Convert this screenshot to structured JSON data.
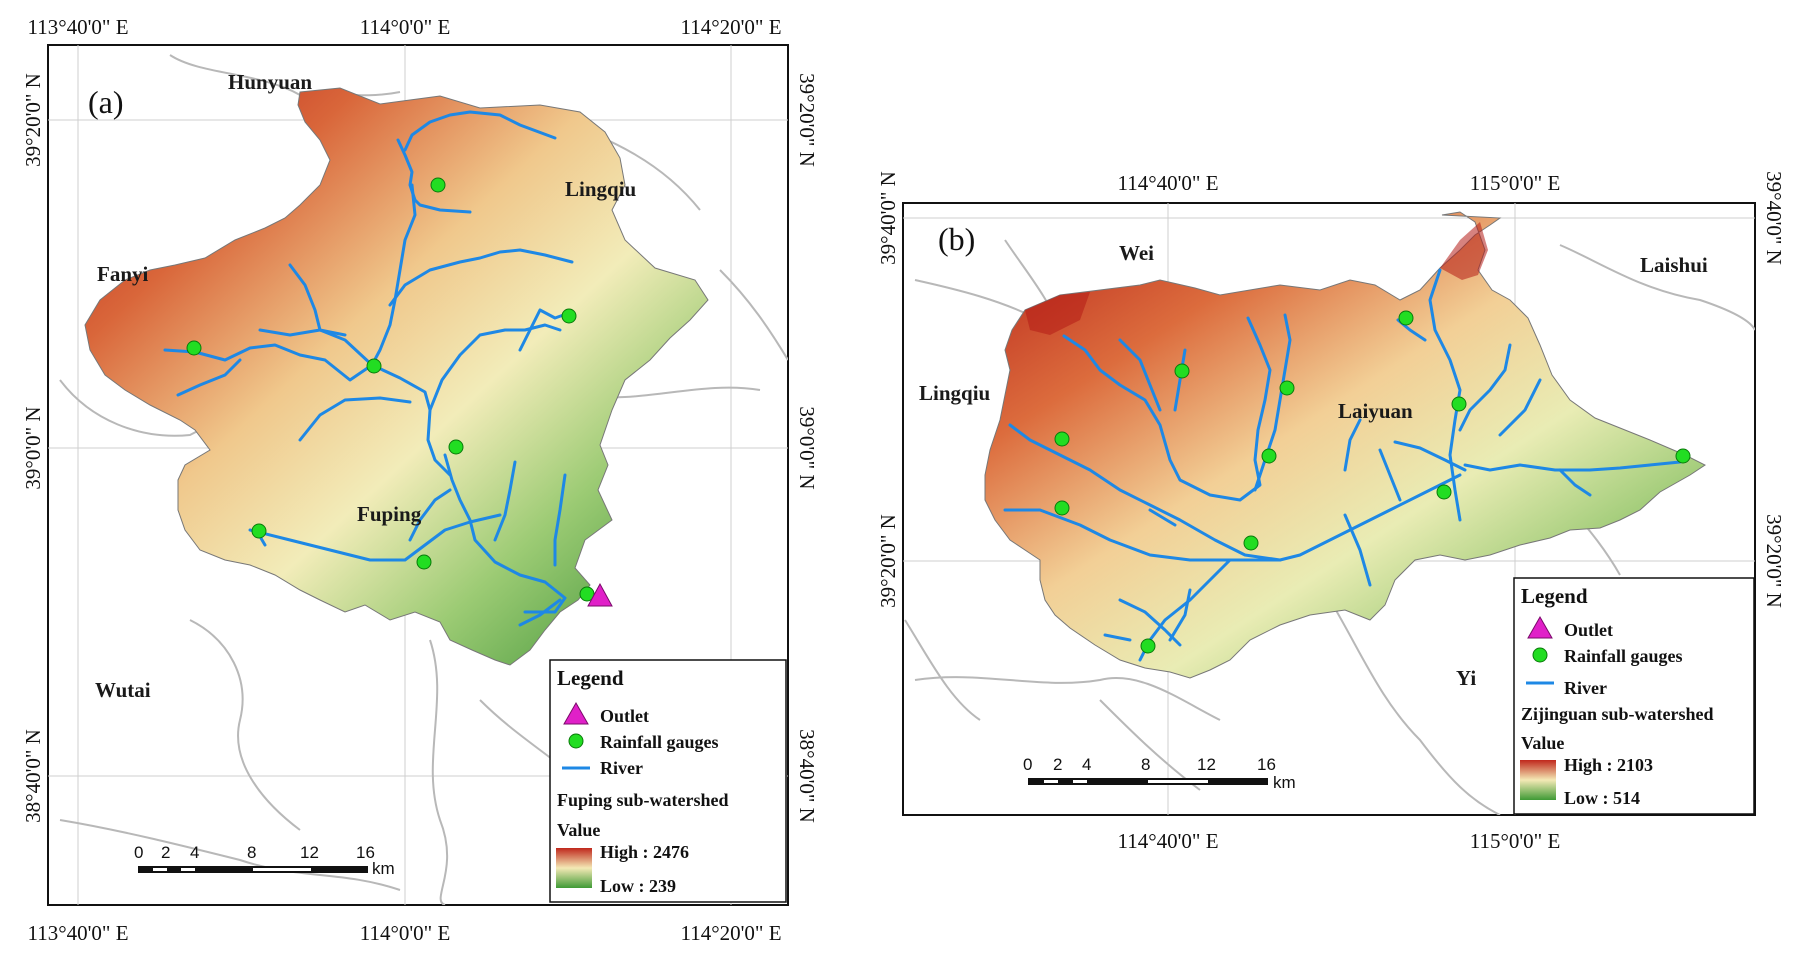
{
  "colors": {
    "high": "#c0271c",
    "mid": "#f4e9b5",
    "low": "#3f9a35",
    "river": "#1e88e5",
    "gauge": "#22dd22",
    "outlet": "#e020c8",
    "boundary": "#b8b8b8"
  },
  "panel_a": {
    "label": "(a)",
    "x_ticks": [
      "113°40'0\" E",
      "114°0'0\" E",
      "114°20'0\" E"
    ],
    "y_ticks_left": [
      "39°20'0\" N",
      "39°0'0\" N",
      "38°40'0\" N"
    ],
    "y_ticks_right": [
      "39°20'0\" N",
      "39°0'0\" N",
      "38°40'0\" N"
    ],
    "places": [
      "Hunyuan",
      "Lingqiu",
      "Fanyi",
      "Fuping",
      "Wutai"
    ],
    "legend": {
      "title": "Legend",
      "outlet": "Outlet",
      "gauges": "Rainfall gauges",
      "river": "River",
      "watershed": "Fuping sub-watershed",
      "value": "Value",
      "high": "High : 2476",
      "low": "Low : 239"
    },
    "scale": {
      "ticks": [
        "0",
        "2",
        "4",
        "8",
        "12",
        "16"
      ],
      "unit": "km"
    }
  },
  "panel_b": {
    "label": "(b)",
    "x_ticks": [
      "114°40'0\" E",
      "115°0'0\" E"
    ],
    "y_ticks_left": [
      "39°40'0\" N",
      "39°20'0\" N"
    ],
    "y_ticks_right": [
      "39°40'0\" N",
      "39°20'0\" N"
    ],
    "places": [
      "Wei",
      "Laishui",
      "Lingqiu",
      "Laiyuan",
      "Yi"
    ],
    "legend": {
      "title": "Legend",
      "outlet": "Outlet",
      "gauges": "Rainfall gauges",
      "river": "River",
      "watershed": "Zijinguan sub-watershed",
      "value": "Value",
      "high": "High : 2103",
      "low": "Low : 514"
    },
    "scale": {
      "ticks": [
        "0",
        "2",
        "4",
        "8",
        "12",
        "16"
      ],
      "unit": "km"
    }
  }
}
